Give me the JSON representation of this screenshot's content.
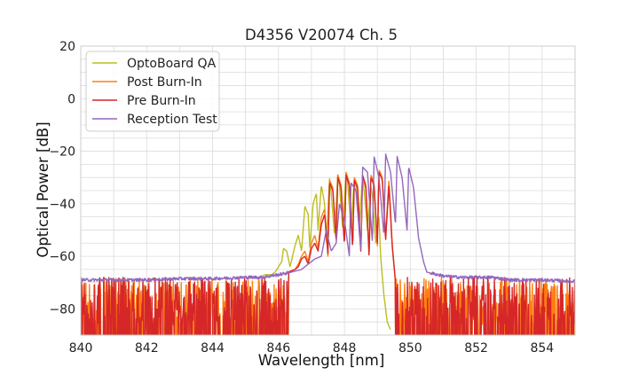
{
  "chart_data": {
    "type": "line",
    "title": "D4356 V20074 Ch. 5",
    "xlabel": "Wavelength [nm]",
    "ylabel": "Optical Power [dB]",
    "xlim": [
      840,
      855
    ],
    "ylim": [
      -90,
      20
    ],
    "x_ticks": [
      "840",
      "842",
      "844",
      "846",
      "848",
      "850",
      "852",
      "854"
    ],
    "y_ticks": [
      "−80",
      "−60",
      "−40",
      "−20",
      "0",
      "20"
    ],
    "grid": true,
    "legend_position": "top-left",
    "series": [
      {
        "name": "OptoBoard QA",
        "color": "#bcbd22",
        "noise_range": [
          846.6,
          849.4
        ],
        "x": [
          845.4,
          845.6,
          845.8,
          845.9,
          846.0,
          846.1,
          846.15,
          846.25,
          846.35,
          846.5,
          846.6,
          846.7,
          846.8,
          846.9,
          846.95,
          847.05,
          847.15,
          847.2,
          847.3,
          847.4,
          847.45,
          847.55,
          847.6,
          847.7,
          847.8,
          847.85,
          847.95,
          848.05,
          848.1,
          848.2,
          848.3,
          848.35,
          848.45,
          848.55,
          848.6,
          848.7,
          848.8,
          848.85,
          848.95,
          849.05,
          849.1,
          849.2,
          849.3,
          849.4
        ],
        "y": [
          -68,
          -67,
          -67,
          -66,
          -64,
          -62,
          -57,
          -58,
          -64,
          -56,
          -52,
          -58,
          -41,
          -44,
          -57,
          -40,
          -36,
          -50,
          -33,
          -40,
          -55,
          -30,
          -36,
          -52,
          -29,
          -33,
          -50,
          -28,
          -32,
          -50,
          -30,
          -33,
          -48,
          -30,
          -35,
          -50,
          -33,
          -37,
          -55,
          -45,
          -60,
          -75,
          -85,
          -88
        ]
      },
      {
        "name": "Post Burn-In",
        "color": "#ff7f0e",
        "noise_range": [
          840,
          855
        ],
        "x": [
          846.3,
          846.5,
          846.6,
          846.7,
          846.8,
          846.9,
          847.0,
          847.1,
          847.2,
          847.3,
          847.4,
          847.5,
          847.55,
          847.65,
          847.75,
          847.8,
          847.9,
          848.0,
          848.05,
          848.15,
          848.25,
          848.3,
          848.4,
          848.5,
          848.55,
          848.65,
          848.75,
          848.8,
          848.9,
          849.0,
          849.05,
          849.15,
          849.25,
          849.35,
          849.45,
          849.55
        ],
        "y": [
          -66,
          -65,
          -63,
          -60,
          -58,
          -62,
          -55,
          -52,
          -57,
          -45,
          -42,
          -60,
          -31,
          -34,
          -55,
          -29,
          -33,
          -55,
          -28,
          -32,
          -56,
          -30,
          -33,
          -58,
          -30,
          -34,
          -60,
          -29,
          -32,
          -56,
          -27,
          -30,
          -52,
          -31,
          -55,
          -70
        ]
      },
      {
        "name": "Pre Burn-In",
        "color": "#d62728",
        "noise_range": [
          840,
          855
        ],
        "x": [
          846.3,
          846.5,
          846.6,
          846.7,
          846.8,
          846.9,
          847.0,
          847.1,
          847.2,
          847.3,
          847.4,
          847.5,
          847.55,
          847.65,
          847.75,
          847.8,
          847.9,
          848.0,
          848.05,
          848.15,
          848.25,
          848.3,
          848.4,
          848.5,
          848.55,
          848.65,
          848.75,
          848.8,
          848.9,
          849.0,
          849.05,
          849.15,
          849.25,
          849.35,
          849.45,
          849.55
        ],
        "y": [
          -66,
          -65,
          -64,
          -61,
          -60,
          -63,
          -57,
          -55,
          -58,
          -48,
          -44,
          -59,
          -32,
          -35,
          -54,
          -30,
          -34,
          -56,
          -29,
          -33,
          -57,
          -31,
          -34,
          -59,
          -29,
          -33,
          -60,
          -30,
          -33,
          -55,
          -28,
          -31,
          -54,
          -33,
          -56,
          -70
        ]
      },
      {
        "name": "Reception Test",
        "color": "#9467bd",
        "noise_range": [],
        "x": [
          840.0,
          841.0,
          842.0,
          843.0,
          844.0,
          845.0,
          845.5,
          846.0,
          846.4,
          846.7,
          846.9,
          847.1,
          847.3,
          847.45,
          847.6,
          847.75,
          847.85,
          848.0,
          848.15,
          848.2,
          848.35,
          848.5,
          848.55,
          848.7,
          848.85,
          848.9,
          849.05,
          849.2,
          849.25,
          849.4,
          849.55,
          849.6,
          849.75,
          849.9,
          849.95,
          850.1,
          850.25,
          850.4,
          850.5,
          851.0,
          851.5,
          852.0,
          852.5,
          853.0,
          854.0,
          855.0
        ],
        "y": [
          -69,
          -69,
          -69,
          -68.5,
          -68.5,
          -68,
          -68,
          -67,
          -66,
          -65,
          -63,
          -61,
          -60,
          -50,
          -58,
          -55,
          -40,
          -46,
          -60,
          -32,
          -35,
          -58,
          -26,
          -28,
          -55,
          -22,
          -30,
          -52,
          -21,
          -28,
          -48,
          -22,
          -30,
          -50,
          -26,
          -34,
          -53,
          -62,
          -66,
          -67.5,
          -68,
          -68,
          -68,
          -69,
          -69,
          -69.5
        ]
      }
    ]
  }
}
